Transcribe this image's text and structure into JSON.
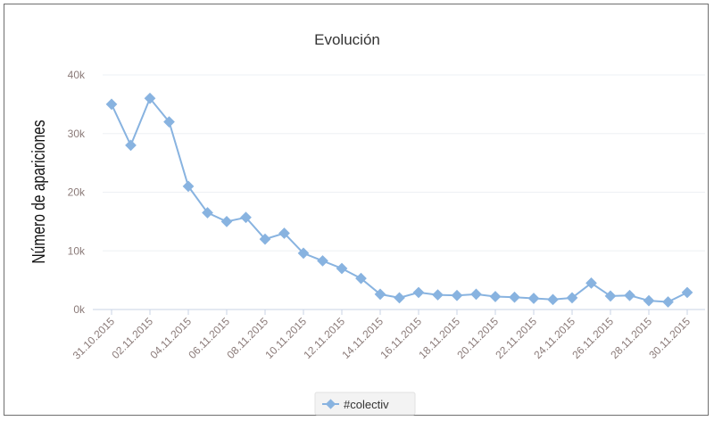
{
  "chart_data": {
    "type": "line",
    "title": "Evolución",
    "xlabel": "",
    "ylabel": "Número de apariciones",
    "ylim": [
      0,
      40000
    ],
    "yticks": [
      0,
      10000,
      20000,
      30000,
      40000
    ],
    "ytick_labels": [
      "0k",
      "10k",
      "20k",
      "30k",
      "40k"
    ],
    "x": [
      "31.10.2015",
      "01.11.2015",
      "02.11.2015",
      "03.11.2015",
      "04.11.2015",
      "05.11.2015",
      "06.11.2015",
      "07.11.2015",
      "08.11.2015",
      "09.11.2015",
      "10.11.2015",
      "11.11.2015",
      "12.11.2015",
      "13.11.2015",
      "14.11.2015",
      "15.11.2015",
      "16.11.2015",
      "17.11.2015",
      "18.11.2015",
      "19.11.2015",
      "20.11.2015",
      "21.11.2015",
      "22.11.2015",
      "23.11.2015",
      "24.11.2015",
      "25.11.2015",
      "26.11.2015",
      "27.11.2015",
      "28.11.2015",
      "29.11.2015",
      "30.11.2015"
    ],
    "xtick_labels": [
      "31.10.2015",
      "02.11.2015",
      "04.11.2015",
      "06.11.2015",
      "08.11.2015",
      "10.11.2015",
      "12.11.2015",
      "14.11.2015",
      "16.11.2015",
      "18.11.2015",
      "20.11.2015",
      "22.11.2015",
      "24.11.2015",
      "26.11.2015",
      "28.11.2015",
      "30.11.2015"
    ],
    "series": [
      {
        "name": "#colectiv",
        "color": "#88b3e0",
        "values": [
          35000,
          28000,
          36000,
          32000,
          21000,
          16500,
          15000,
          15700,
          12000,
          13000,
          9600,
          8300,
          7000,
          5300,
          2600,
          2000,
          2900,
          2500,
          2400,
          2600,
          2200,
          2100,
          1900,
          1700,
          2000,
          4500,
          2300,
          2400,
          1500,
          1300,
          2900
        ]
      }
    ],
    "grid": true,
    "legend": "bottom-center"
  }
}
